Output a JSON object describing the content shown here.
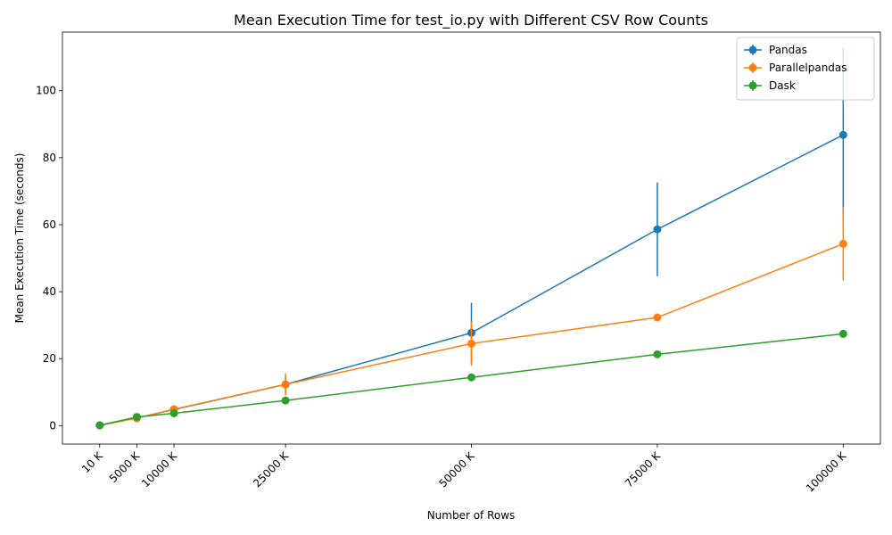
{
  "chart_data": {
    "type": "line",
    "title": "Mean Execution Time for test_io.py with Different CSV Row Counts",
    "xlabel": "Number of Rows",
    "ylabel": "Mean Execution Time (seconds)",
    "x": [
      10,
      5000,
      10000,
      25000,
      50000,
      75000,
      100000
    ],
    "x_tick_labels": [
      "10 K",
      "5000 K",
      "10000 K",
      "25000 K",
      "50000 K",
      "75000 K",
      "100000 K"
    ],
    "y_ticks": [
      0,
      20,
      40,
      60,
      80,
      100
    ],
    "xlim": [
      -5000,
      105000
    ],
    "ylim": [
      -5.5,
      117.5
    ],
    "grid": false,
    "legend_position": "upper right",
    "series": [
      {
        "name": "Pandas",
        "color": "#1f77b4",
        "values": [
          0.1,
          2.3,
          4.8,
          12.3,
          27.7,
          58.6,
          86.8
        ],
        "errors": [
          0.05,
          0.4,
          0.6,
          2.5,
          9.0,
          14.0,
          26.0
        ]
      },
      {
        "name": "Parallelpandas",
        "color": "#ff7f0e",
        "values": [
          0.1,
          2.2,
          4.9,
          12.3,
          24.5,
          32.3,
          54.3
        ],
        "errors": [
          0.05,
          0.3,
          0.5,
          3.3,
          6.6,
          0.8,
          11.0
        ]
      },
      {
        "name": "Dask",
        "color": "#2ca02c",
        "values": [
          0.1,
          2.6,
          3.7,
          7.5,
          14.4,
          21.3,
          27.4
        ],
        "errors": [
          0.05,
          0.2,
          0.2,
          0.3,
          0.4,
          0.4,
          0.6
        ]
      }
    ]
  }
}
